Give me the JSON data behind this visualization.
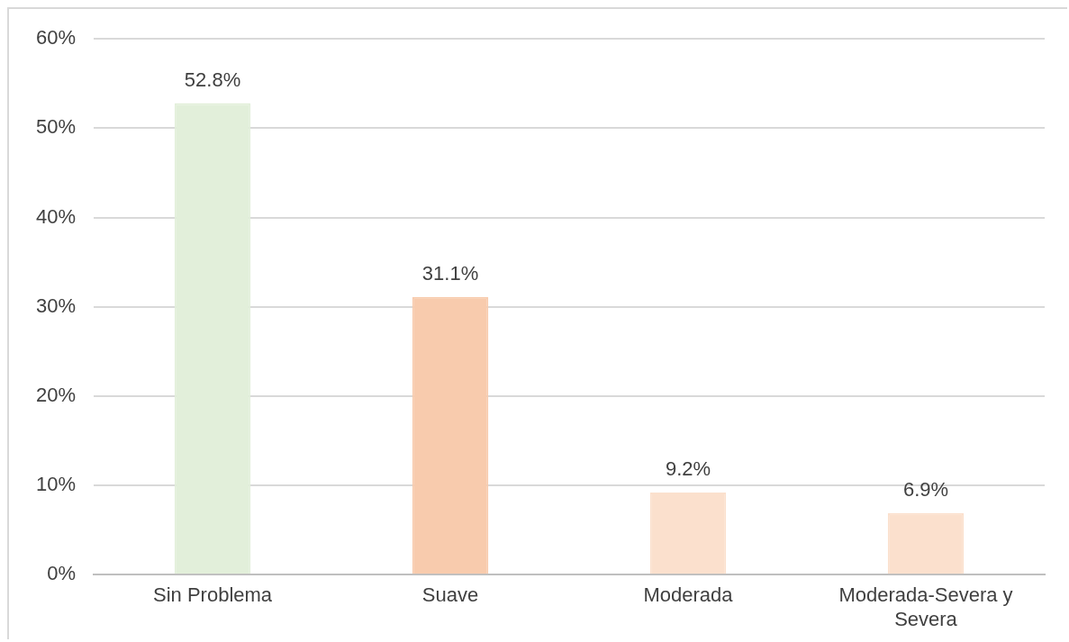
{
  "chart_data": {
    "type": "bar",
    "categories": [
      "Sin Problema",
      "Suave",
      "Moderada",
      "Moderada-Severa y Severa"
    ],
    "values": [
      52.8,
      31.1,
      9.2,
      6.9
    ],
    "colors": [
      "#e2efda",
      "#f8cbad",
      "#fbe0cd",
      "#fbe0cd"
    ],
    "value_labels": [
      "52.8%",
      "31.1%",
      "9.2%",
      "6.9%"
    ],
    "ylim": [
      0,
      60
    ],
    "yticks": [
      {
        "value": 0,
        "label": "0%"
      },
      {
        "value": 10,
        "label": "10%"
      },
      {
        "value": 20,
        "label": "20%"
      },
      {
        "value": 30,
        "label": "30%"
      },
      {
        "value": 40,
        "label": "40%"
      },
      {
        "value": 50,
        "label": "50%"
      },
      {
        "value": 60,
        "label": "60%"
      }
    ],
    "grid": "y"
  }
}
